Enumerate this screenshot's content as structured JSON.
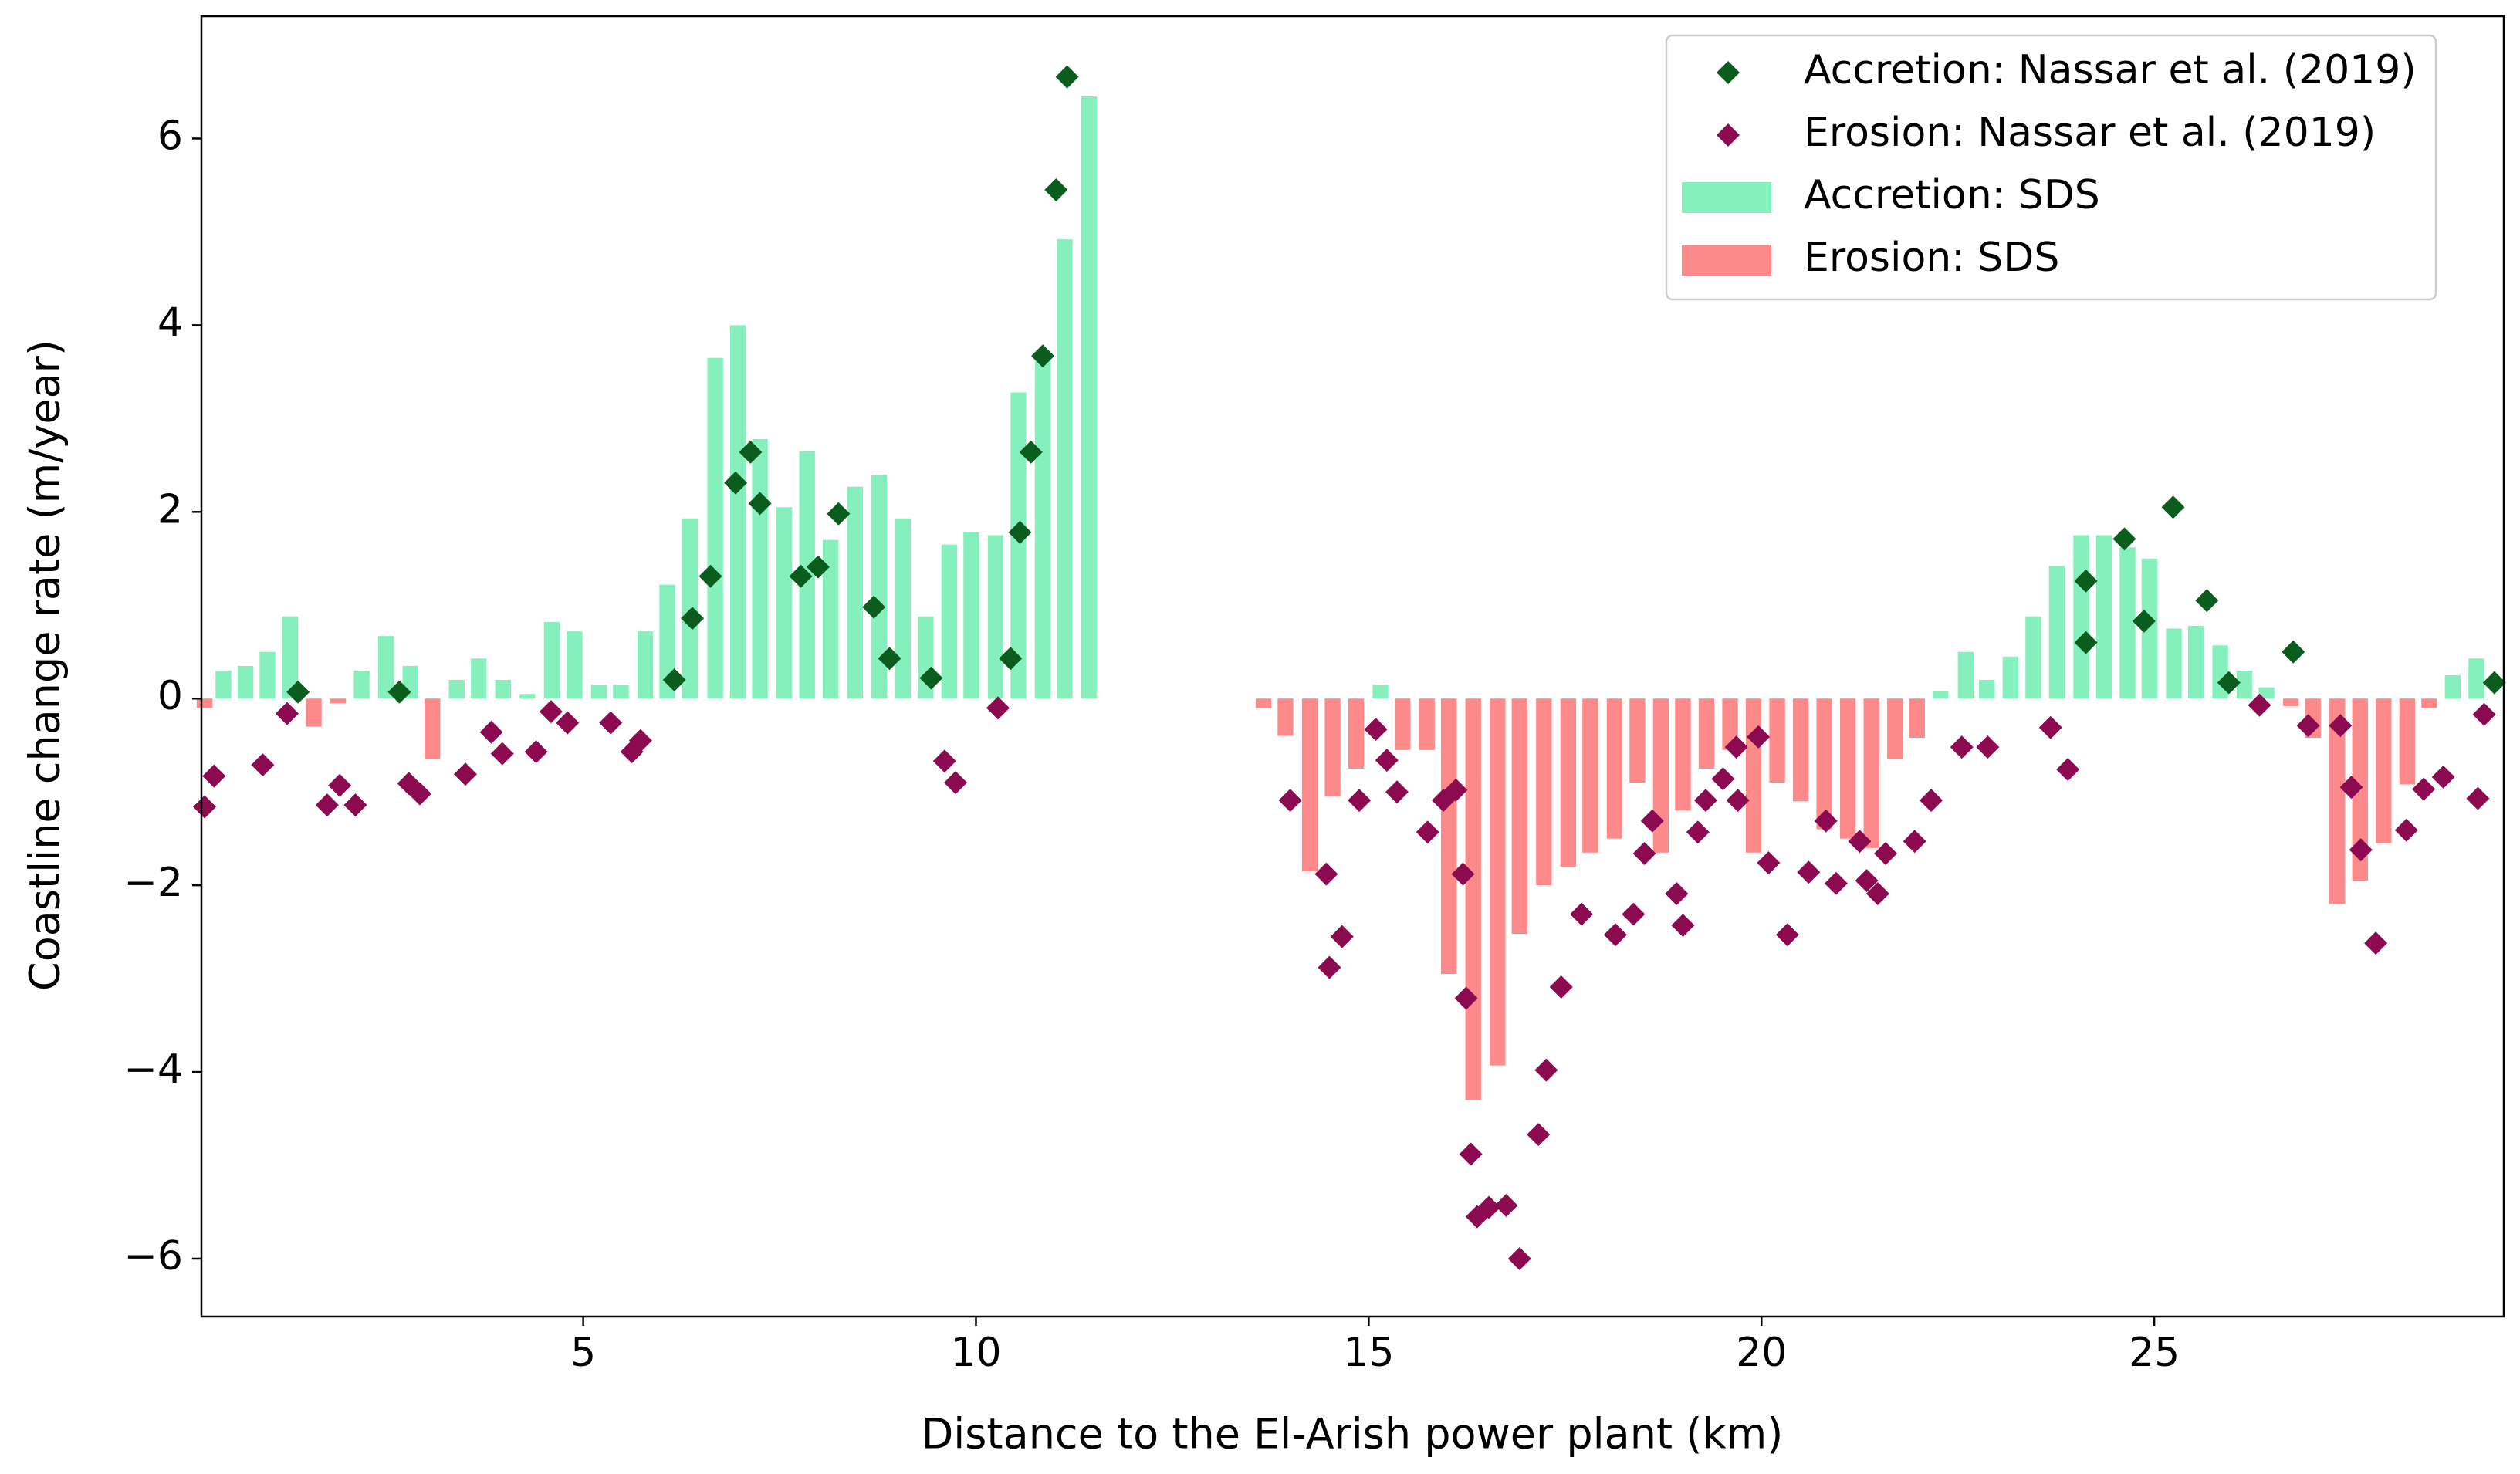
{
  "chart_data": {
    "type": "bar",
    "xlabel": "Distance to the El-Arish power plant (km)",
    "ylabel": "Coastline change rate (m/year)",
    "xlim": [
      0.14,
      29.45
    ],
    "ylim": [
      -6.62,
      7.31
    ],
    "xticks": [
      5,
      10,
      15,
      20,
      25
    ],
    "yticks": [
      {
        "value": -6,
        "label": "−6"
      },
      {
        "value": -4,
        "label": "−4"
      },
      {
        "value": -2,
        "label": "−2"
      },
      0,
      2,
      4,
      6
    ],
    "legend": "upper right",
    "series": [
      {
        "name": "Accretion: Nassar et al. (2019)",
        "type": "scatter",
        "color": "#0b5d1e",
        "x": [
          1.37,
          2.66,
          6.16,
          6.39,
          6.62,
          6.94,
          7.13,
          7.25,
          7.77,
          7.99,
          8.25,
          8.7,
          8.9,
          9.43,
          10.44,
          10.56,
          10.7,
          10.85,
          11.02,
          11.16,
          24.13,
          24.13,
          24.62,
          24.87,
          25.24,
          25.67,
          25.95,
          26.77,
          29.33
        ],
        "values": [
          0.07,
          0.07,
          0.2,
          0.86,
          1.31,
          2.31,
          2.64,
          2.09,
          1.31,
          1.41,
          1.98,
          0.98,
          0.43,
          0.22,
          0.43,
          1.78,
          2.64,
          3.67,
          5.45,
          6.66,
          1.26,
          0.6,
          1.71,
          0.83,
          2.05,
          1.05,
          0.17,
          0.5,
          0.17
        ]
      },
      {
        "name": "Erosion: Nassar et al. (2019)",
        "type": "scatter",
        "color": "#8b0a50",
        "x": [
          0.18,
          0.3,
          0.92,
          1.23,
          1.74,
          1.9,
          2.1,
          2.78,
          2.92,
          3.5,
          3.83,
          3.97,
          4.4,
          4.59,
          4.8,
          5.35,
          5.62,
          5.73,
          9.6,
          9.74,
          10.28,
          14.0,
          14.46,
          14.5,
          14.66,
          14.88,
          15.09,
          15.23,
          15.36,
          15.75,
          15.95,
          16.11,
          16.2,
          16.24,
          16.3,
          16.38,
          16.53,
          16.75,
          16.92,
          17.16,
          17.26,
          17.45,
          17.71,
          18.14,
          18.37,
          18.51,
          18.61,
          18.92,
          19.0,
          19.19,
          19.29,
          19.51,
          19.7,
          19.68,
          19.96,
          20.09,
          20.33,
          20.6,
          20.82,
          20.95,
          21.25,
          21.34,
          21.48,
          21.58,
          21.95,
          22.16,
          22.55,
          22.88,
          23.68,
          23.9,
          26.34,
          26.96,
          27.37,
          27.51,
          27.63,
          27.82,
          28.21,
          28.43,
          28.68,
          29.12,
          29.2
        ],
        "values": [
          -1.16,
          -0.83,
          -0.71,
          -0.16,
          -1.14,
          -0.93,
          -1.14,
          -0.91,
          -1.02,
          -0.81,
          -0.36,
          -0.59,
          -0.57,
          -0.14,
          -0.26,
          -0.26,
          -0.57,
          -0.45,
          -0.67,
          -0.9,
          -0.1,
          -1.09,
          -1.88,
          -2.88,
          -2.55,
          -1.09,
          -0.33,
          -0.66,
          -1.0,
          -1.43,
          -1.09,
          -0.98,
          -1.88,
          -3.21,
          -4.88,
          -5.55,
          -5.45,
          -5.43,
          -6.0,
          -4.67,
          -3.98,
          -3.09,
          -2.31,
          -2.53,
          -2.31,
          -1.66,
          -1.31,
          -2.09,
          -2.43,
          -1.43,
          -1.09,
          -0.86,
          -1.09,
          -0.52,
          -0.41,
          -1.76,
          -2.53,
          -1.86,
          -1.31,
          -1.98,
          -1.53,
          -1.95,
          -2.09,
          -1.66,
          -1.53,
          -1.09,
          -0.52,
          -0.52,
          -0.31,
          -0.76,
          -0.07,
          -0.29,
          -0.29,
          -0.95,
          -1.62,
          -2.62,
          -1.41,
          -0.97,
          -0.84,
          -1.07,
          -0.17
        ]
      },
      {
        "name": "Accretion: SDS",
        "type": "bar",
        "color": "#86f0bd",
        "x": [
          0.42,
          0.7,
          0.98,
          1.27,
          2.18,
          2.49,
          2.8,
          3.39,
          3.67,
          3.98,
          4.29,
          4.6,
          4.89,
          5.2,
          5.48,
          5.79,
          6.07,
          6.36,
          6.68,
          6.97,
          7.25,
          7.56,
          7.85,
          8.15,
          8.46,
          8.77,
          9.07,
          9.36,
          9.66,
          9.94,
          10.25,
          10.54,
          10.85,
          11.13,
          11.44,
          15.15,
          22.28,
          22.6,
          22.87,
          23.17,
          23.46,
          23.76,
          24.07,
          24.36,
          24.66,
          24.94,
          25.25,
          25.53,
          25.84,
          26.15,
          26.43,
          28.8,
          29.1
        ],
        "values": [
          0.3,
          0.35,
          0.5,
          0.88,
          0.3,
          0.67,
          0.35,
          0.2,
          0.43,
          0.2,
          0.05,
          0.82,
          0.72,
          0.15,
          0.15,
          0.72,
          1.22,
          1.93,
          3.65,
          4.0,
          2.78,
          2.05,
          2.65,
          1.7,
          2.27,
          2.4,
          1.93,
          0.88,
          1.65,
          1.78,
          1.75,
          3.28,
          3.7,
          4.92,
          6.45,
          0.15,
          0.08,
          0.5,
          0.2,
          0.45,
          0.88,
          1.42,
          1.75,
          1.75,
          1.62,
          1.5,
          0.75,
          0.78,
          0.57,
          0.3,
          0.12,
          0.25,
          0.43
        ]
      },
      {
        "name": "Erosion: SDS",
        "type": "bar",
        "color": "#fd8a8a",
        "x": [
          0.18,
          1.57,
          1.88,
          3.08,
          13.66,
          13.94,
          14.25,
          14.54,
          14.84,
          15.43,
          15.74,
          16.02,
          16.33,
          16.64,
          16.92,
          17.23,
          17.54,
          17.82,
          18.13,
          18.42,
          18.72,
          19.0,
          19.3,
          19.6,
          19.9,
          20.2,
          20.5,
          20.8,
          21.1,
          21.4,
          21.7,
          21.98,
          26.74,
          27.02,
          27.33,
          27.62,
          27.92,
          28.22,
          28.5
        ],
        "values": [
          -0.1,
          -0.3,
          -0.05,
          -0.65,
          -0.1,
          -0.4,
          -1.85,
          -1.05,
          -0.75,
          -0.55,
          -0.55,
          -2.95,
          -4.3,
          -3.93,
          -2.52,
          -2.0,
          -1.8,
          -1.65,
          -1.5,
          -0.9,
          -1.65,
          -1.2,
          -0.75,
          -0.55,
          -1.65,
          -0.9,
          -1.1,
          -1.4,
          -1.5,
          -1.6,
          -0.65,
          -0.42,
          -0.08,
          -0.42,
          -2.2,
          -1.95,
          -1.55,
          -0.92,
          -0.1
        ]
      }
    ]
  }
}
